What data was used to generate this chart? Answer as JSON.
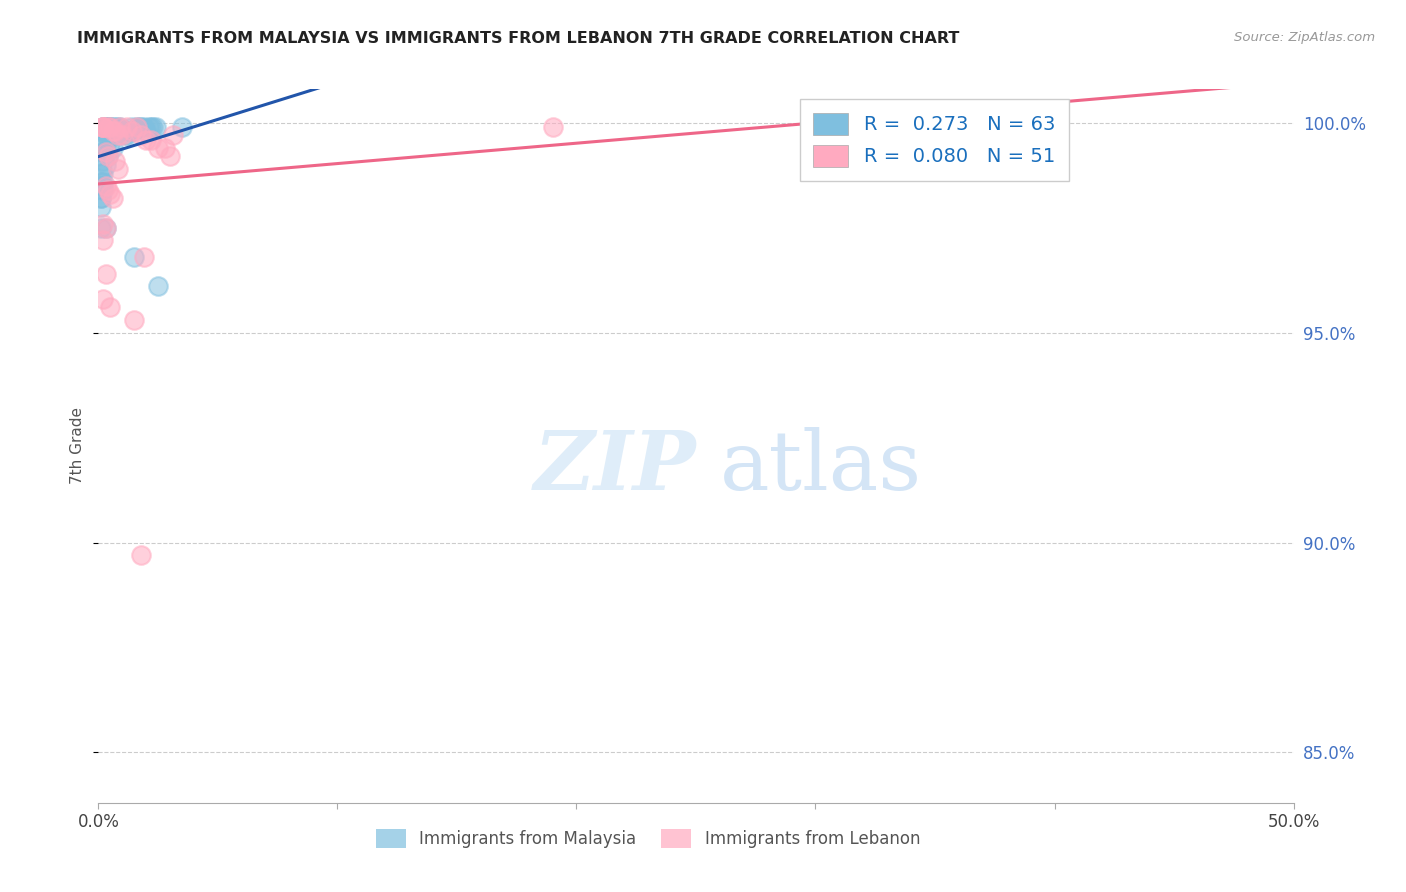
{
  "title": "IMMIGRANTS FROM MALAYSIA VS IMMIGRANTS FROM LEBANON 7TH GRADE CORRELATION CHART",
  "source": "Source: ZipAtlas.com",
  "ylabel": "7th Grade",
  "ytick_vals": [
    0.85,
    0.9,
    0.95,
    1.0
  ],
  "xmin": 0.0,
  "xmax": 0.5,
  "ymin": 0.838,
  "ymax": 1.008,
  "r_malaysia": 0.273,
  "n_malaysia": 63,
  "r_lebanon": 0.08,
  "n_lebanon": 51,
  "color_malaysia": "#7fbfdf",
  "color_lebanon": "#ffaac0",
  "trendline_malaysia_color": "#2255aa",
  "trendline_lebanon_color": "#ee6688",
  "legend_label_malaysia": "Immigrants from Malaysia",
  "legend_label_lebanon": "Immigrants from Lebanon",
  "malaysia_x": [
    0.001,
    0.001,
    0.001,
    0.001,
    0.001,
    0.001,
    0.001,
    0.002,
    0.002,
    0.002,
    0.002,
    0.002,
    0.002,
    0.002,
    0.002,
    0.002,
    0.002,
    0.003,
    0.003,
    0.003,
    0.003,
    0.003,
    0.003,
    0.003,
    0.003,
    0.004,
    0.004,
    0.004,
    0.004,
    0.004,
    0.005,
    0.005,
    0.005,
    0.005,
    0.006,
    0.006,
    0.006,
    0.007,
    0.007,
    0.008,
    0.008,
    0.009,
    0.01,
    0.011,
    0.012,
    0.013,
    0.014,
    0.015,
    0.015,
    0.016,
    0.017,
    0.018,
    0.019,
    0.02,
    0.021,
    0.022,
    0.023,
    0.024,
    0.025,
    0.035
  ],
  "malaysia_y": [
    0.988,
    0.986,
    0.985,
    0.982,
    0.982,
    0.98,
    0.975,
    0.999,
    0.999,
    0.998,
    0.993,
    0.993,
    0.991,
    0.988,
    0.986,
    0.985,
    0.984,
    0.999,
    0.999,
    0.998,
    0.997,
    0.996,
    0.993,
    0.99,
    0.975,
    0.999,
    0.999,
    0.998,
    0.996,
    0.992,
    0.999,
    0.999,
    0.997,
    0.995,
    0.999,
    0.997,
    0.994,
    0.999,
    0.997,
    0.999,
    0.998,
    0.999,
    0.998,
    0.997,
    0.997,
    0.998,
    0.999,
    0.998,
    0.968,
    0.999,
    0.999,
    0.999,
    0.999,
    0.998,
    0.999,
    0.999,
    0.999,
    0.999,
    0.961,
    0.999
  ],
  "lebanon_x": [
    0.002,
    0.002,
    0.002,
    0.002,
    0.002,
    0.002,
    0.002,
    0.003,
    0.003,
    0.003,
    0.003,
    0.004,
    0.004,
    0.004,
    0.005,
    0.005,
    0.005,
    0.006,
    0.006,
    0.007,
    0.007,
    0.008,
    0.008,
    0.009,
    0.01,
    0.012,
    0.014,
    0.015,
    0.016,
    0.018,
    0.018,
    0.019,
    0.02,
    0.022,
    0.025,
    0.028,
    0.03,
    0.031,
    0.19,
    0.328
  ],
  "lebanon_y": [
    0.999,
    0.999,
    0.999,
    0.999,
    0.976,
    0.972,
    0.958,
    0.993,
    0.985,
    0.975,
    0.964,
    0.999,
    0.992,
    0.984,
    0.999,
    0.983,
    0.956,
    0.998,
    0.982,
    0.998,
    0.991,
    0.997,
    0.989,
    0.999,
    0.997,
    0.999,
    0.998,
    0.953,
    0.999,
    0.997,
    0.897,
    0.968,
    0.996,
    0.996,
    0.994,
    0.994,
    0.992,
    0.997,
    0.999,
    0.999
  ]
}
